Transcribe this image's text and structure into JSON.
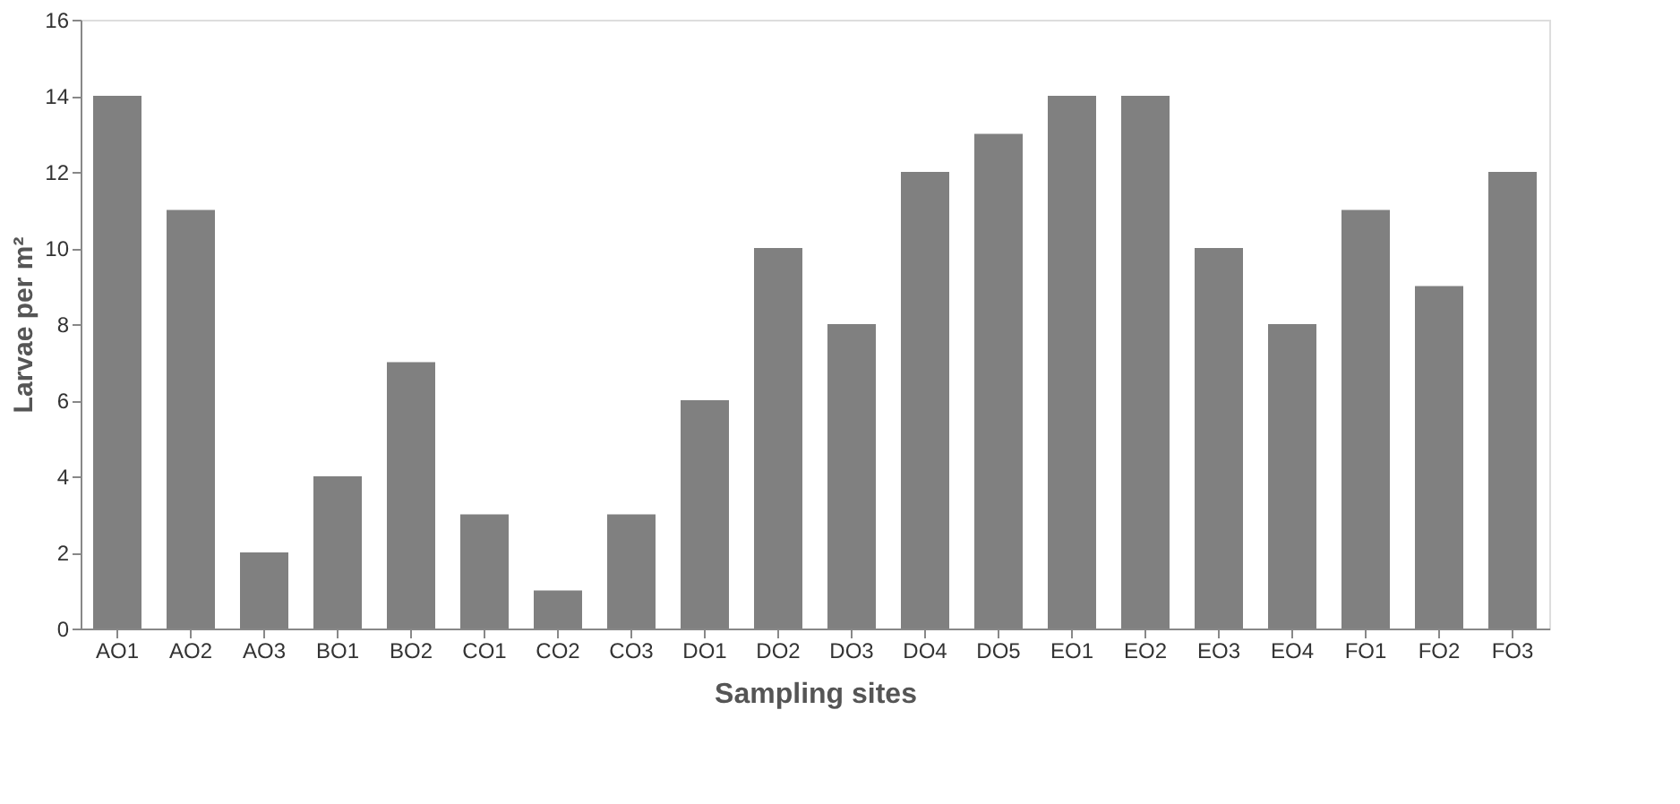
{
  "chart_data": {
    "type": "bar",
    "xlabel": "Sampling sites",
    "ylabel": "Larvae per m²",
    "categories": [
      "AO1",
      "AO2",
      "AO3",
      "BO1",
      "BO2",
      "CO1",
      "CO2",
      "CO3",
      "DO1",
      "DO2",
      "DO3",
      "DO4",
      "DO5",
      "EO1",
      "EO2",
      "EO3",
      "EO4",
      "FO1",
      "FO2",
      "FO3"
    ],
    "values": [
      14,
      11,
      2,
      4,
      7,
      3,
      1,
      3,
      6,
      10,
      8,
      12,
      13,
      14,
      14,
      10,
      8,
      11,
      9,
      12
    ],
    "color": "#808080",
    "ylim": [
      0,
      16
    ],
    "yticks": [
      0,
      2,
      4,
      6,
      8,
      10,
      12,
      14,
      16
    ],
    "grid": false
  }
}
